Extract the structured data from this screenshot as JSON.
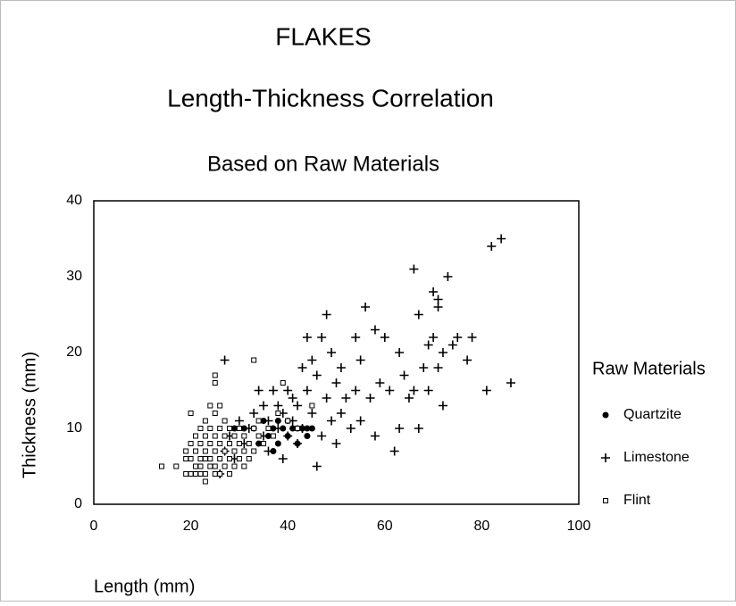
{
  "chart_data": {
    "type": "scatter",
    "title": "FLAKES",
    "subtitle": "Length-Thickness Correlation",
    "subtitle2": "Based on Raw Materials",
    "x_label": "Length (mm)",
    "y_label": "Thickness (mm)",
    "xlim": [
      0,
      100
    ],
    "ylim": [
      0,
      40
    ],
    "xticks": [
      0,
      20,
      40,
      60,
      80,
      100
    ],
    "yticks": [
      0,
      10,
      20,
      30,
      40
    ],
    "grid": false,
    "legend": {
      "title": "Raw Materials",
      "position": "right"
    },
    "series": [
      {
        "name": "Quartzite",
        "marker": "circle",
        "color": "#000000",
        "x": [
          33,
          34,
          35,
          36,
          37,
          37,
          38,
          38,
          39,
          40,
          40,
          41,
          42,
          42,
          43,
          44,
          44,
          45,
          29,
          31
        ],
        "values": [
          10,
          8,
          11,
          9,
          10,
          7,
          11,
          8,
          10,
          9,
          11,
          10,
          8,
          10,
          10,
          9,
          10,
          10,
          10,
          10
        ]
      },
      {
        "name": "Limestone",
        "marker": "plus",
        "color": "#000000",
        "x": [
          26,
          27,
          27,
          28,
          29,
          30,
          31,
          32,
          33,
          34,
          35,
          35,
          36,
          36,
          37,
          38,
          38,
          39,
          39,
          40,
          40,
          41,
          41,
          42,
          42,
          43,
          43,
          44,
          44,
          45,
          45,
          46,
          46,
          47,
          47,
          48,
          48,
          49,
          49,
          50,
          50,
          51,
          51,
          52,
          53,
          54,
          54,
          55,
          55,
          56,
          57,
          58,
          58,
          59,
          60,
          61,
          62,
          63,
          63,
          64,
          65,
          66,
          66,
          67,
          67,
          68,
          69,
          69,
          70,
          70,
          71,
          71,
          71,
          72,
          72,
          73,
          74,
          75,
          77,
          78,
          81,
          82,
          84,
          86
        ],
        "values": [
          4,
          19,
          7,
          9,
          6,
          11,
          8,
          10,
          12,
          15,
          9,
          13,
          7,
          11,
          15,
          10,
          13,
          6,
          12,
          9,
          15,
          11,
          14,
          8,
          13,
          10,
          18,
          15,
          22,
          12,
          19,
          5,
          17,
          9,
          22,
          14,
          25,
          11,
          20,
          8,
          16,
          12,
          18,
          14,
          10,
          15,
          22,
          11,
          19,
          26,
          14,
          9,
          23,
          16,
          22,
          15,
          7,
          10,
          20,
          17,
          14,
          31,
          15,
          10,
          25,
          18,
          21,
          15,
          28,
          22,
          26,
          27,
          18,
          13,
          20,
          30,
          21,
          22,
          19,
          22,
          15,
          34,
          35,
          16
        ]
      },
      {
        "name": "Flint",
        "marker": "square",
        "color": "#000000",
        "x": [
          14,
          17,
          19,
          19,
          19,
          20,
          20,
          20,
          20,
          21,
          21,
          21,
          21,
          22,
          22,
          22,
          22,
          22,
          23,
          23,
          23,
          23,
          23,
          23,
          24,
          24,
          24,
          24,
          24,
          25,
          25,
          25,
          25,
          25,
          25,
          25,
          26,
          26,
          26,
          26,
          26,
          27,
          27,
          27,
          27,
          28,
          28,
          28,
          28,
          29,
          29,
          29,
          30,
          30,
          30,
          31,
          31,
          31,
          32,
          32,
          33,
          33,
          33,
          34,
          34,
          35,
          36,
          37,
          38,
          40,
          42,
          39,
          45
        ],
        "values": [
          5,
          5,
          4,
          6,
          7,
          4,
          6,
          8,
          12,
          4,
          5,
          7,
          9,
          4,
          5,
          6,
          8,
          10,
          3,
          4,
          6,
          7,
          9,
          11,
          5,
          6,
          8,
          10,
          13,
          4,
          5,
          7,
          9,
          12,
          16,
          17,
          4,
          6,
          8,
          10,
          13,
          5,
          7,
          9,
          11,
          4,
          6,
          8,
          10,
          5,
          7,
          9,
          6,
          8,
          10,
          5,
          7,
          9,
          6,
          8,
          7,
          10,
          19,
          9,
          11,
          8,
          10,
          9,
          12,
          11,
          10,
          16,
          13
        ]
      }
    ]
  }
}
